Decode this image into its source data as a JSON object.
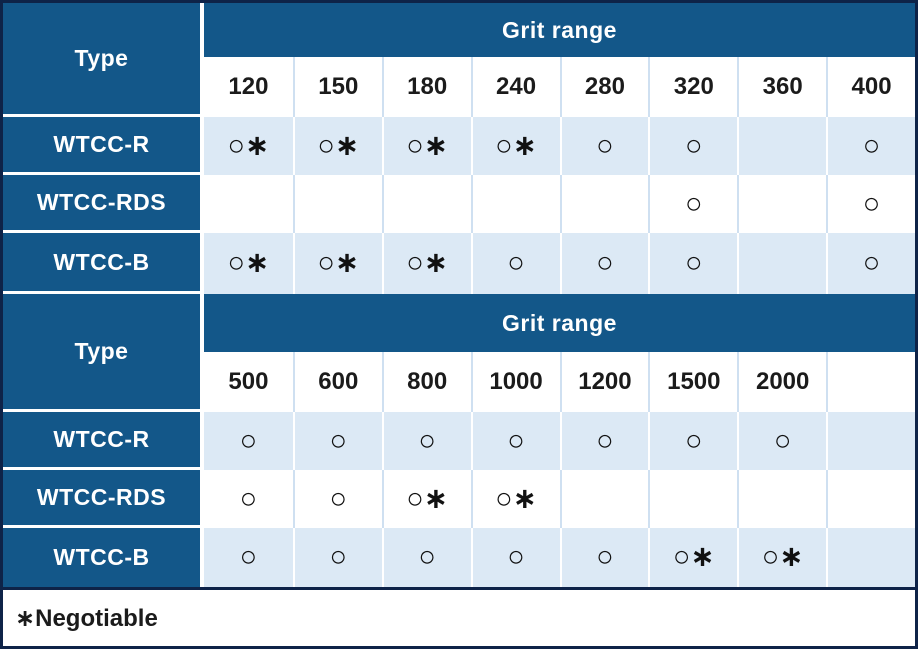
{
  "colors": {
    "header_blue": "#135789",
    "band_light_blue": "#dce9f5",
    "grid_pale_blue": "#cfe0f1",
    "outer_border_navy": "#0e2348",
    "text_dark": "#1b1b1b",
    "text_white": "#ffffff"
  },
  "tables": [
    {
      "type_header": "Type",
      "grit_header": "Grit range",
      "columns": [
        "120",
        "150",
        "180",
        "240",
        "280",
        "320",
        "360",
        "400"
      ],
      "rows": [
        {
          "label": "WTCC-R",
          "cells": [
            "○∗",
            "○∗",
            "○∗",
            "○∗",
            "○",
            "○",
            "",
            "○"
          ]
        },
        {
          "label": "WTCC-RDS",
          "cells": [
            "",
            "",
            "",
            "",
            "",
            "○",
            "",
            "○"
          ]
        },
        {
          "label": "WTCC-B",
          "cells": [
            "○∗",
            "○∗",
            "○∗",
            "○",
            "○",
            "○",
            "",
            "○"
          ]
        }
      ]
    },
    {
      "type_header": "Type",
      "grit_header": "Grit range",
      "columns": [
        "500",
        "600",
        "800",
        "1000",
        "1200",
        "1500",
        "2000",
        ""
      ],
      "rows": [
        {
          "label": "WTCC-R",
          "cells": [
            "○",
            "○",
            "○",
            "○",
            "○",
            "○",
            "○",
            ""
          ]
        },
        {
          "label": "WTCC-RDS",
          "cells": [
            "○",
            "○",
            "○∗",
            "○∗",
            "",
            "",
            "",
            ""
          ]
        },
        {
          "label": "WTCC-B",
          "cells": [
            "○",
            "○",
            "○",
            "○",
            "○",
            "○∗",
            "○∗",
            ""
          ]
        }
      ]
    }
  ],
  "footnote": "∗Negotiable"
}
